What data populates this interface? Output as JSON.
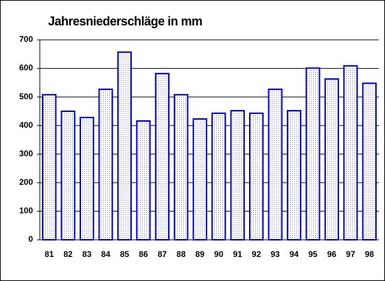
{
  "chart_data": {
    "type": "bar",
    "title": "Jahresniederschläge in mm",
    "categories": [
      "81",
      "82",
      "83",
      "84",
      "85",
      "86",
      "87",
      "88",
      "89",
      "90",
      "91",
      "92",
      "93",
      "94",
      "95",
      "96",
      "97",
      "98"
    ],
    "values": [
      508,
      450,
      428,
      527,
      657,
      416,
      582,
      508,
      423,
      443,
      452,
      443,
      527,
      452,
      601,
      563,
      609,
      548
    ],
    "color": "#0000cc",
    "ylim": [
      0,
      700
    ],
    "yticks": [
      0,
      100,
      200,
      300,
      400,
      500,
      600,
      700
    ],
    "grid": true
  }
}
